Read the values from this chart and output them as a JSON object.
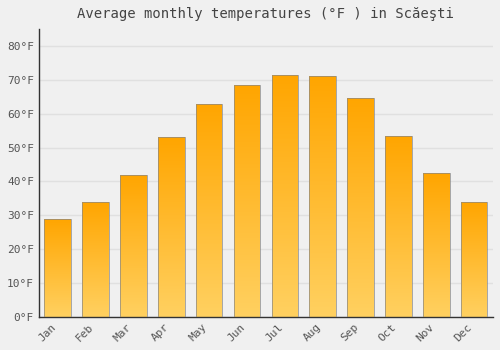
{
  "months": [
    "Jan",
    "Feb",
    "Mar",
    "Apr",
    "May",
    "Jun",
    "Jul",
    "Aug",
    "Sep",
    "Oct",
    "Nov",
    "Dec"
  ],
  "values": [
    29,
    34,
    42,
    53,
    63,
    68.5,
    71.5,
    71,
    64.5,
    53.5,
    42.5,
    34
  ],
  "bar_color_top": "#FFA500",
  "bar_color_bottom": "#FFD060",
  "title": "Average monthly temperatures (°F ) in Scăeşti",
  "yticks": [
    0,
    10,
    20,
    30,
    40,
    50,
    60,
    70,
    80
  ],
  "ytick_labels": [
    "0°F",
    "10°F",
    "20°F",
    "30°F",
    "40°F",
    "50°F",
    "60°F",
    "70°F",
    "80°F"
  ],
  "ylim": [
    0,
    85
  ],
  "background_color": "#f0f0f0",
  "grid_color": "#e0e0e0",
  "title_fontsize": 10,
  "tick_fontsize": 8,
  "bar_width": 0.7,
  "spine_color": "#333333",
  "tick_color": "#555555"
}
